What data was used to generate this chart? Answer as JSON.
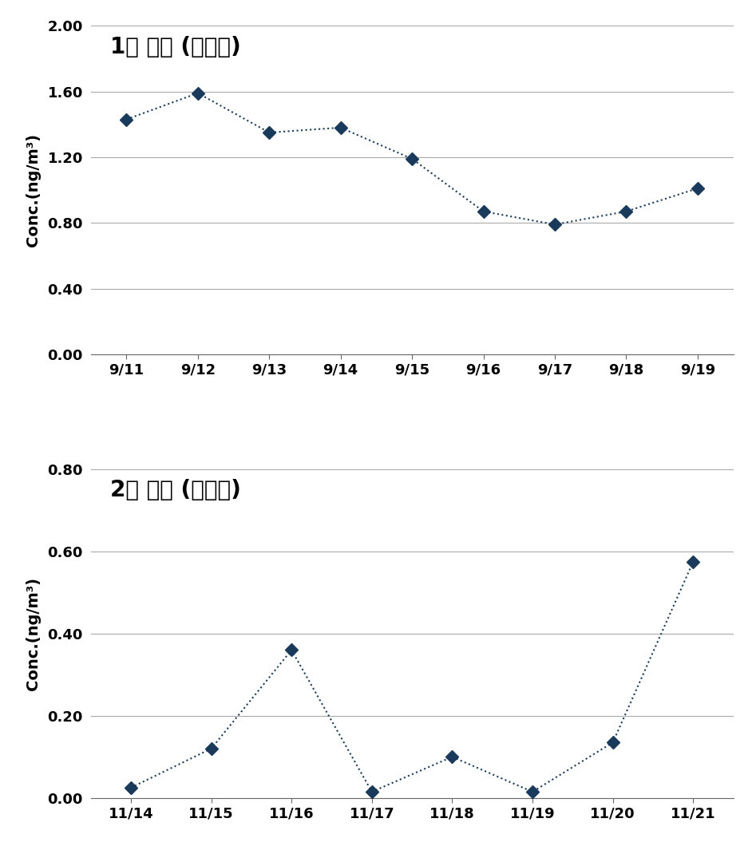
{
  "plot1": {
    "title": "1차 조사 (복대동)",
    "x_labels": [
      "9/11",
      "9/12",
      "9/13",
      "9/14",
      "9/15",
      "9/16",
      "9/17",
      "9/18",
      "9/19"
    ],
    "y_values": [
      1.43,
      1.59,
      1.35,
      1.38,
      1.19,
      0.87,
      0.79,
      0.87,
      1.01
    ],
    "ylim": [
      0.0,
      2.0
    ],
    "yticks": [
      0.0,
      0.4,
      0.8,
      1.2,
      1.6,
      2.0
    ],
    "ylabel": "Conc.(ng/m³)"
  },
  "plot2": {
    "title": "2차 조사 (복대동)",
    "x_labels": [
      "11/14",
      "11/15",
      "11/16",
      "11/17",
      "11/18",
      "11/19",
      "11/20",
      "11/21"
    ],
    "y_values": [
      0.025,
      0.12,
      0.36,
      0.015,
      0.1,
      0.015,
      0.135,
      0.575
    ],
    "ylim": [
      0.0,
      0.8
    ],
    "yticks": [
      0.0,
      0.2,
      0.4,
      0.6,
      0.8
    ],
    "ylabel": "Conc.(ng/m³)"
  },
  "line_color": "#1a3a5c",
  "marker_color": "#1a3a5c",
  "marker": "D",
  "markersize": 8,
  "linewidth": 1.5,
  "linestyle": ":",
  "background_color": "#ffffff",
  "grid_color": "#aaaaaa",
  "title_fontsize": 20,
  "label_fontsize": 14,
  "tick_fontsize": 13
}
